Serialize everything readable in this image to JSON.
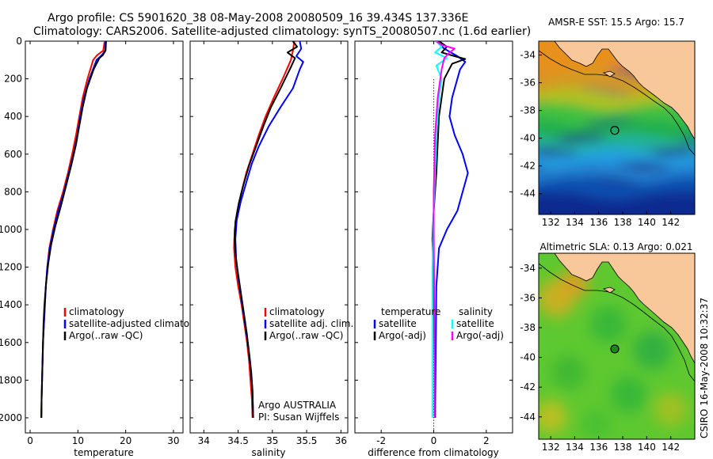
{
  "title": {
    "line1": "Argo profile: CS 5901620_38 08-May-2008 20080509_16 39.434S 137.336E",
    "line2": "Climatology: CARS2006. Satellite-adjusted climatology: synTS_20080507.nc (1.6d earlier)"
  },
  "credit": "CSIRO 16-May-2008 10:32:37",
  "attribution": {
    "line1": "Argo AUSTRALIA",
    "line2": "PI: Susan Wijffels"
  },
  "colors": {
    "climatology": "#ff0000",
    "satellite": "#0000ff",
    "argo": "#000000",
    "sat_diff": "#00ffff",
    "argo_adj_diff": "#ff00ff",
    "land": "#f8c89a"
  },
  "chart_data": [
    {
      "type": "line",
      "xlabel": "temperature",
      "ylabel": "",
      "xlim": [
        -1,
        32
      ],
      "ylim": [
        2080,
        0
      ],
      "y_inverted": true,
      "xticks": [
        0,
        10,
        20,
        30
      ],
      "yticks": [
        0,
        200,
        400,
        600,
        800,
        1000,
        1200,
        1400,
        1600,
        1800,
        2000
      ],
      "legend": {
        "position": "lower-center",
        "entries": [
          "climatology",
          "satellite-adjusted climatology",
          "Argo(..raw -QC)"
        ]
      },
      "series": [
        {
          "name": "climatology",
          "color": "#ff0000",
          "points": [
            [
              15.6,
              0
            ],
            [
              15.3,
              50
            ],
            [
              14.0,
              75
            ],
            [
              13.2,
              100
            ],
            [
              12.0,
              200
            ],
            [
              11.0,
              300
            ],
            [
              10.3,
              400
            ],
            [
              9.6,
              500
            ],
            [
              8.8,
              600
            ],
            [
              7.9,
              700
            ],
            [
              6.9,
              800
            ],
            [
              5.7,
              900
            ],
            [
              4.8,
              1000
            ],
            [
              4.0,
              1100
            ],
            [
              3.6,
              1200
            ],
            [
              3.3,
              1300
            ],
            [
              3.1,
              1400
            ],
            [
              2.9,
              1500
            ],
            [
              2.7,
              1600
            ],
            [
              2.6,
              1700
            ],
            [
              2.5,
              1800
            ],
            [
              2.4,
              1900
            ],
            [
              2.35,
              2000
            ]
          ]
        },
        {
          "name": "satellite-adjusted climatology",
          "color": "#0000ff",
          "points": [
            [
              15.8,
              0
            ],
            [
              15.7,
              50
            ],
            [
              15.0,
              75
            ],
            [
              13.9,
              100
            ],
            [
              12.4,
              200
            ],
            [
              11.3,
              300
            ],
            [
              10.5,
              400
            ],
            [
              9.9,
              500
            ],
            [
              9.1,
              600
            ],
            [
              8.1,
              700
            ],
            [
              7.1,
              800
            ],
            [
              5.9,
              900
            ],
            [
              4.9,
              1000
            ],
            [
              4.1,
              1100
            ],
            [
              3.6,
              1200
            ],
            [
              3.3,
              1300
            ],
            [
              3.1,
              1400
            ],
            [
              2.9,
              1500
            ],
            [
              2.7,
              1600
            ],
            [
              2.6,
              1700
            ],
            [
              2.5,
              1800
            ],
            [
              2.4,
              1900
            ],
            [
              2.35,
              2000
            ]
          ]
        },
        {
          "name": "Argo(..raw -QC)",
          "color": "#000000",
          "points": [
            [
              15.9,
              0
            ],
            [
              15.8,
              50
            ],
            [
              15.2,
              75
            ],
            [
              14.5,
              90
            ],
            [
              13.3,
              150
            ],
            [
              11.9,
              250
            ],
            [
              11.0,
              350
            ],
            [
              10.3,
              450
            ],
            [
              9.6,
              550
            ],
            [
              8.7,
              650
            ],
            [
              7.6,
              760
            ],
            [
              6.4,
              880
            ],
            [
              5.3,
              980
            ],
            [
              4.4,
              1080
            ],
            [
              3.8,
              1180
            ],
            [
              3.3,
              1300
            ],
            [
              3.0,
              1400
            ],
            [
              2.8,
              1500
            ],
            [
              2.7,
              1600
            ],
            [
              2.6,
              1700
            ],
            [
              2.5,
              1800
            ],
            [
              2.4,
              1900
            ],
            [
              2.35,
              2000
            ]
          ]
        }
      ]
    },
    {
      "type": "line",
      "xlabel": "salinity",
      "ylabel": "",
      "xlim": [
        33.8,
        36.1
      ],
      "ylim": [
        2080,
        0
      ],
      "y_inverted": true,
      "xticks": [
        34,
        34.5,
        35,
        35.5,
        36
      ],
      "legend": {
        "position": "lower-center",
        "entries": [
          "climatology",
          "satellite adj. clim.",
          "Argo(..raw -QC)"
        ]
      },
      "series": [
        {
          "name": "climatology",
          "color": "#ff0000",
          "points": [
            [
              35.32,
              0
            ],
            [
              35.3,
              50
            ],
            [
              35.27,
              100
            ],
            [
              35.15,
              200
            ],
            [
              35.02,
              300
            ],
            [
              34.9,
              400
            ],
            [
              34.8,
              500
            ],
            [
              34.71,
              600
            ],
            [
              34.62,
              700
            ],
            [
              34.55,
              800
            ],
            [
              34.49,
              900
            ],
            [
              34.45,
              1000
            ],
            [
              34.44,
              1100
            ],
            [
              34.46,
              1200
            ],
            [
              34.5,
              1300
            ],
            [
              34.55,
              1400
            ],
            [
              34.59,
              1500
            ],
            [
              34.63,
              1600
            ],
            [
              34.66,
              1700
            ],
            [
              34.68,
              1800
            ],
            [
              34.7,
              1900
            ],
            [
              34.71,
              2000
            ]
          ]
        },
        {
          "name": "satellite adj. clim.",
          "color": "#0000ff",
          "points": [
            [
              35.4,
              0
            ],
            [
              35.42,
              40
            ],
            [
              35.35,
              80
            ],
            [
              35.45,
              110
            ],
            [
              35.4,
              150
            ],
            [
              35.3,
              250
            ],
            [
              35.12,
              350
            ],
            [
              34.95,
              450
            ],
            [
              34.8,
              560
            ],
            [
              34.7,
              650
            ],
            [
              34.62,
              750
            ],
            [
              34.54,
              850
            ],
            [
              34.48,
              950
            ],
            [
              34.46,
              1050
            ],
            [
              34.47,
              1150
            ],
            [
              34.5,
              1250
            ],
            [
              34.54,
              1350
            ],
            [
              34.58,
              1450
            ],
            [
              34.62,
              1550
            ],
            [
              34.66,
              1650
            ],
            [
              34.69,
              1750
            ],
            [
              34.71,
              1850
            ],
            [
              34.72,
              2000
            ]
          ]
        },
        {
          "name": "Argo(..raw -QC)",
          "color": "#000000",
          "points": [
            [
              35.3,
              0
            ],
            [
              35.36,
              30
            ],
            [
              35.22,
              60
            ],
            [
              35.33,
              90
            ],
            [
              35.28,
              130
            ],
            [
              35.12,
              250
            ],
            [
              34.98,
              350
            ],
            [
              34.87,
              450
            ],
            [
              34.76,
              560
            ],
            [
              34.66,
              660
            ],
            [
              34.58,
              760
            ],
            [
              34.51,
              860
            ],
            [
              34.46,
              960
            ],
            [
              34.45,
              1060
            ],
            [
              34.47,
              1160
            ],
            [
              34.51,
              1260
            ],
            [
              34.55,
              1360
            ],
            [
              34.59,
              1460
            ],
            [
              34.63,
              1560
            ],
            [
              34.66,
              1660
            ],
            [
              34.69,
              1760
            ],
            [
              34.71,
              1860
            ],
            [
              34.72,
              2000
            ]
          ]
        }
      ]
    },
    {
      "type": "line",
      "xlabel": "difference from climatology",
      "ylabel": "",
      "xlim": [
        -3,
        3
      ],
      "ylim": [
        2080,
        0
      ],
      "y_inverted": true,
      "xticks": [
        -2,
        0,
        2
      ],
      "legend": {
        "position": "lower-center",
        "groups": [
          {
            "title": "temperature",
            "entries": [
              "satellite",
              "Argo(-adj)"
            ]
          },
          {
            "title": "salinity",
            "entries": [
              "satellite",
              "Argo(-adj)"
            ]
          }
        ]
      },
      "series": [
        {
          "name": "temperature satellite",
          "color": "#0000ff",
          "points": [
            [
              0.1,
              0
            ],
            [
              0.4,
              40
            ],
            [
              0.9,
              80
            ],
            [
              1.2,
              110
            ],
            [
              1.0,
              150
            ],
            [
              0.7,
              300
            ],
            [
              0.6,
              400
            ],
            [
              0.8,
              500
            ],
            [
              1.1,
              600
            ],
            [
              1.3,
              700
            ],
            [
              1.1,
              800
            ],
            [
              0.9,
              900
            ],
            [
              0.5,
              1000
            ],
            [
              0.2,
              1100
            ],
            [
              0.1,
              1300
            ],
            [
              0.05,
              2000
            ]
          ]
        },
        {
          "name": "temperature Argo(-adj)",
          "color": "#000000",
          "points": [
            [
              0.2,
              0
            ],
            [
              0.5,
              30
            ],
            [
              0.3,
              60
            ],
            [
              0.8,
              80
            ],
            [
              1.2,
              95
            ],
            [
              0.7,
              120
            ],
            [
              0.4,
              200
            ],
            [
              0.2,
              400
            ],
            [
              0.1,
              700
            ],
            [
              0,
              900
            ],
            [
              -0.05,
              1050
            ],
            [
              0,
              1300
            ],
            [
              0.05,
              2000
            ]
          ]
        },
        {
          "name": "salinity satellite",
          "color": "#00ffff",
          "points": [
            [
              0.08,
              0
            ],
            [
              0.3,
              30
            ],
            [
              0.05,
              60
            ],
            [
              0.5,
              90
            ],
            [
              0.1,
              130
            ],
            [
              0.3,
              200
            ],
            [
              0.2,
              300
            ],
            [
              0.1,
              500
            ],
            [
              0.05,
              700
            ],
            [
              0,
              900
            ],
            [
              -0.05,
              1200
            ],
            [
              -0.05,
              1600
            ],
            [
              -0.05,
              2000
            ]
          ]
        },
        {
          "name": "salinity Argo(-adj)",
          "color": "#ff00ff",
          "points": [
            [
              0.1,
              0
            ],
            [
              0.3,
              20
            ],
            [
              0.8,
              40
            ],
            [
              0.6,
              60
            ],
            [
              0.4,
              90
            ],
            [
              0.3,
              150
            ],
            [
              0.15,
              300
            ],
            [
              0.05,
              500
            ],
            [
              0,
              800
            ],
            [
              0,
              1000
            ],
            [
              0.02,
              1400
            ],
            [
              0.03,
              2000
            ]
          ]
        }
      ]
    },
    {
      "type": "heatmap",
      "title": "AMSR-E SST: 15.5 Argo: 15.7",
      "xlabel": "",
      "ylabel": "",
      "xlim": [
        131,
        144
      ],
      "ylim": [
        -45.5,
        -33
      ],
      "xticks": [
        132,
        134,
        136,
        138,
        140,
        142
      ],
      "yticks": [
        -34,
        -36,
        -38,
        -40,
        -42,
        -44
      ],
      "marker": {
        "lon": 137.336,
        "lat": -39.434
      },
      "bands": [
        {
          "lat": -34.5,
          "color": "#e8901a"
        },
        {
          "lat": -36.0,
          "color": "#d49a20"
        },
        {
          "lat": -37.2,
          "color": "#b0c020"
        },
        {
          "lat": -38.2,
          "color": "#40c040"
        },
        {
          "lat": -39.5,
          "color": "#20b050"
        },
        {
          "lat": -40.5,
          "color": "#20b0a0"
        },
        {
          "lat": -41.5,
          "color": "#20a0e0"
        },
        {
          "lat": -42.5,
          "color": "#2080d0"
        },
        {
          "lat": -43.5,
          "color": "#1050b0"
        },
        {
          "lat": -44.8,
          "color": "#0c2c90"
        }
      ]
    },
    {
      "type": "heatmap",
      "title": "Altimetric SLA: 0.13 Argo: 0.021",
      "xlabel": "",
      "ylabel": "",
      "xlim": [
        131,
        144
      ],
      "ylim": [
        -45.5,
        -33
      ],
      "xticks": [
        132,
        134,
        136,
        138,
        140,
        142
      ],
      "yticks": [
        -34,
        -36,
        -38,
        -40,
        -42,
        -44
      ],
      "marker": {
        "lon": 137.336,
        "lat": -39.434
      },
      "base_color": "#5ec830",
      "blobs": [
        {
          "lon": 132.5,
          "lat": -36.0,
          "r": 1.6,
          "color": "#c8b020"
        },
        {
          "lon": 134.0,
          "lat": -35.0,
          "r": 1.2,
          "color": "#d8a020"
        },
        {
          "lon": 136.8,
          "lat": -37.8,
          "r": 1.5,
          "color": "#38b838"
        },
        {
          "lon": 140.5,
          "lat": -39.5,
          "r": 1.6,
          "color": "#30b040"
        },
        {
          "lon": 133.5,
          "lat": -41.0,
          "r": 1.4,
          "color": "#40b830"
        },
        {
          "lon": 138.5,
          "lat": -42.5,
          "r": 1.5,
          "color": "#38b838"
        },
        {
          "lon": 142.0,
          "lat": -43.5,
          "r": 1.4,
          "color": "#a0c020"
        },
        {
          "lon": 132.0,
          "lat": -44.0,
          "r": 1.4,
          "color": "#b8c020"
        },
        {
          "lon": 135.8,
          "lat": -44.5,
          "r": 1.2,
          "color": "#48c030"
        }
      ]
    }
  ]
}
